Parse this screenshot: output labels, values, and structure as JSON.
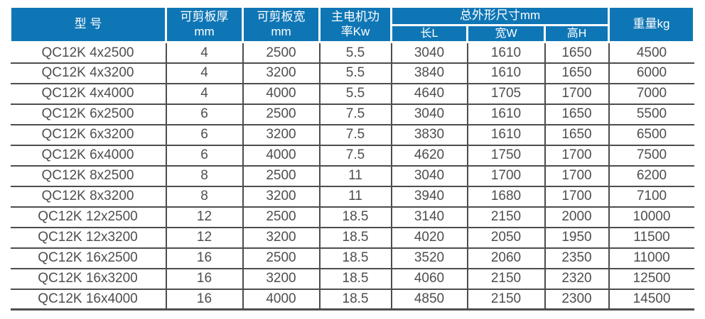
{
  "colors": {
    "header_bg": "#0f76b5",
    "header_text": "#ffffff",
    "border": "#4c4d4f",
    "text": "#4d4e50"
  },
  "table": {
    "header": {
      "model": "型 号",
      "thickness_line1": "可剪板厚",
      "thickness_line2": "mm",
      "width_line1": "可剪板宽",
      "width_line2": "mm",
      "power_line1": "主电机功",
      "power_line2": "率Kw",
      "dims_group": "总外形尺寸mm",
      "dim_length": "长L",
      "dim_width": "宽W",
      "dim_height": "高H",
      "weight": "重量kg"
    },
    "column_keys": [
      "model",
      "thickness-mm",
      "width-mm",
      "power-kw",
      "length-l",
      "width-w",
      "height-h",
      "weight-kg"
    ],
    "rows": [
      [
        "QC12K 4x2500",
        "4",
        "2500",
        "5.5",
        "3040",
        "1610",
        "1650",
        "4500"
      ],
      [
        "QC12K 4x3200",
        "4",
        "3200",
        "5.5",
        "3840",
        "1610",
        "1650",
        "6000"
      ],
      [
        "QC12K 4x4000",
        "4",
        "4000",
        "5.5",
        "4640",
        "1705",
        "1700",
        "7000"
      ],
      [
        "QC12K 6x2500",
        "6",
        "2500",
        "7.5",
        "3040",
        "1610",
        "1650",
        "5500"
      ],
      [
        "QC12K 6x3200",
        "6",
        "3200",
        "7.5",
        "3830",
        "1610",
        "1650",
        "6500"
      ],
      [
        "QC12K 6x4000",
        "6",
        "4000",
        "7.5",
        "4620",
        "1750",
        "1700",
        "7500"
      ],
      [
        "QC12K 8x2500",
        "8",
        "2500",
        "11",
        "3040",
        "1700",
        "1700",
        "6200"
      ],
      [
        "QC12K 8x3200",
        "8",
        "3200",
        "11",
        "3940",
        "1680",
        "1700",
        "7100"
      ],
      [
        "QC12K 12x2500",
        "12",
        "2500",
        "18.5",
        "3140",
        "2150",
        "2000",
        "10000"
      ],
      [
        "QC12K 12x3200",
        "12",
        "3200",
        "18.5",
        "4020",
        "2050",
        "1950",
        "11500"
      ],
      [
        "QC12K 16x2500",
        "16",
        "2500",
        "18.5",
        "3520",
        "2060",
        "2350",
        "11000"
      ],
      [
        "QC12K 16x3200",
        "16",
        "3200",
        "18.5",
        "4060",
        "2150",
        "2320",
        "12500"
      ],
      [
        "QC12K 16x4000",
        "16",
        "4000",
        "18.5",
        "4850",
        "2150",
        "2300",
        "14500"
      ]
    ]
  }
}
